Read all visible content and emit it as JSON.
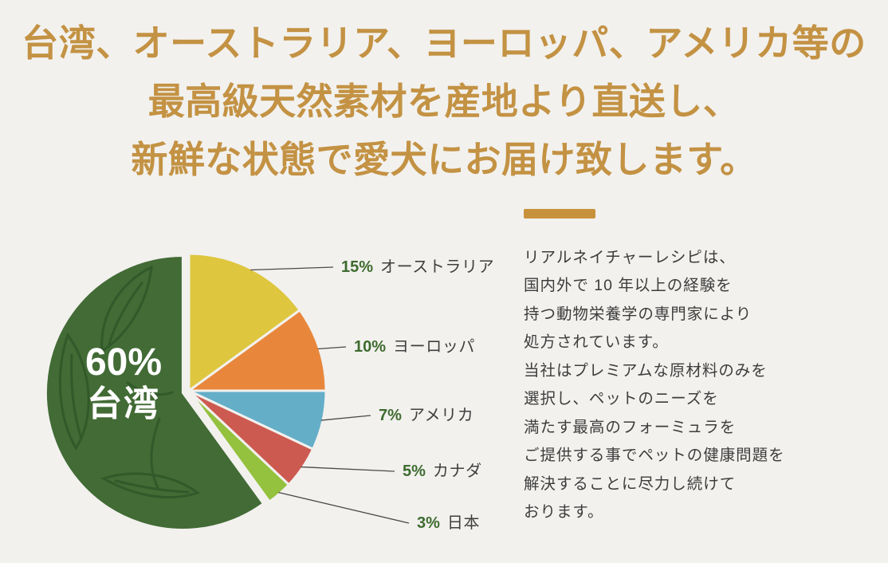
{
  "page": {
    "bg": "#f2f1ee"
  },
  "heading": {
    "color": "#c39243",
    "line1": "台湾、オーストラリア、ヨーロッパ、アメリカ等の",
    "line2": "最高級天然素材を産地より直送し、",
    "line3": "新鮮な状態で愛犬にお届け致します。"
  },
  "description": {
    "divider_color": "#c8923d",
    "text_color": "#3d3d3d",
    "text": "リアルネイチャーレシピは、\n国内外で 10 年以上の経験を\n持つ動物栄養学の専門家により\n処方されています。\n当社はプレミアムな原材料のみを\n選択し、ペットのニーズを\n満たす最高のフォーミュラを\nご提供する事でペットの健康問題を\n解決することに尽力し続けて\nおります。"
  },
  "chart_data": {
    "type": "pie",
    "unit": "%",
    "direction": "clockwise",
    "start_angle_deg": -90,
    "legend_position": "right-callouts",
    "callout_percent_color": "#3e6b2f",
    "callout_name_color": "#3f3f3f",
    "gap_color": "#f2f1ee",
    "slices": [
      {
        "label": "オーストラリア",
        "value": 15,
        "pct_label": "15%",
        "color": "#dec63e"
      },
      {
        "label": "ヨーロッパ",
        "value": 10,
        "pct_label": "10%",
        "color": "#e8873c"
      },
      {
        "label": "アメリカ",
        "value": 7,
        "pct_label": "7%",
        "color": "#64aec8"
      },
      {
        "label": "カナダ",
        "value": 5,
        "pct_label": "5%",
        "color": "#cd5a50"
      },
      {
        "label": "日本",
        "value": 3,
        "pct_label": "3%",
        "color": "#94c13e"
      },
      {
        "label": "台湾",
        "value": 60,
        "pct_label": "60%",
        "color": "#426b35",
        "exploded": true,
        "inner_label_color": "#ffffff",
        "illustration": "leafy-greens-line-art"
      }
    ]
  }
}
